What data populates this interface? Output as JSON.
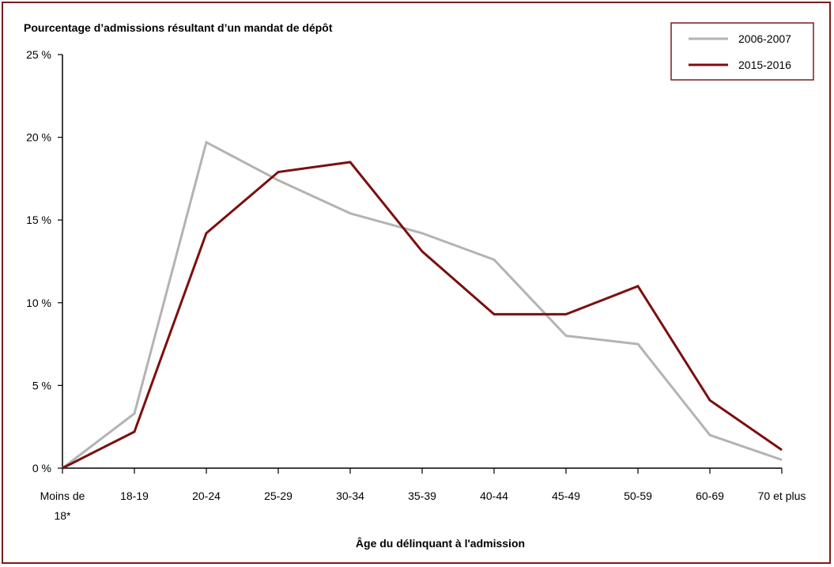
{
  "frame_color": "#7b1c1c",
  "chart_data": {
    "type": "line",
    "title": "Pourcentage d’admissions résultant d’un mandat de dépôt",
    "xlabel": "Âge du délinquant à l'admission",
    "ylabel": "",
    "ylim": [
      0,
      25
    ],
    "yticks": [
      "0 %",
      "5 %",
      "10 %",
      "15 %",
      "20 %",
      "25 %"
    ],
    "categories": [
      [
        "Moins de",
        "18*"
      ],
      [
        "18-19"
      ],
      [
        "20-24"
      ],
      [
        "25-29"
      ],
      [
        "30-34"
      ],
      [
        "35-39"
      ],
      [
        "40-44"
      ],
      [
        "45-49"
      ],
      [
        "50-59"
      ],
      [
        "60-69"
      ],
      [
        "70 et plus"
      ]
    ],
    "series": [
      {
        "name": "2006-2007",
        "color": "#b3b3b3",
        "values": [
          0,
          3.3,
          19.7,
          17.4,
          15.4,
          14.2,
          12.6,
          8.0,
          7.5,
          2.0,
          0.5
        ]
      },
      {
        "name": "2015-2016",
        "color": "#7b0f0f",
        "values": [
          0,
          2.2,
          14.2,
          17.9,
          18.5,
          13.1,
          9.3,
          9.3,
          11.0,
          4.1,
          1.1
        ]
      }
    ],
    "legend_position": "top-right",
    "grid": false
  }
}
